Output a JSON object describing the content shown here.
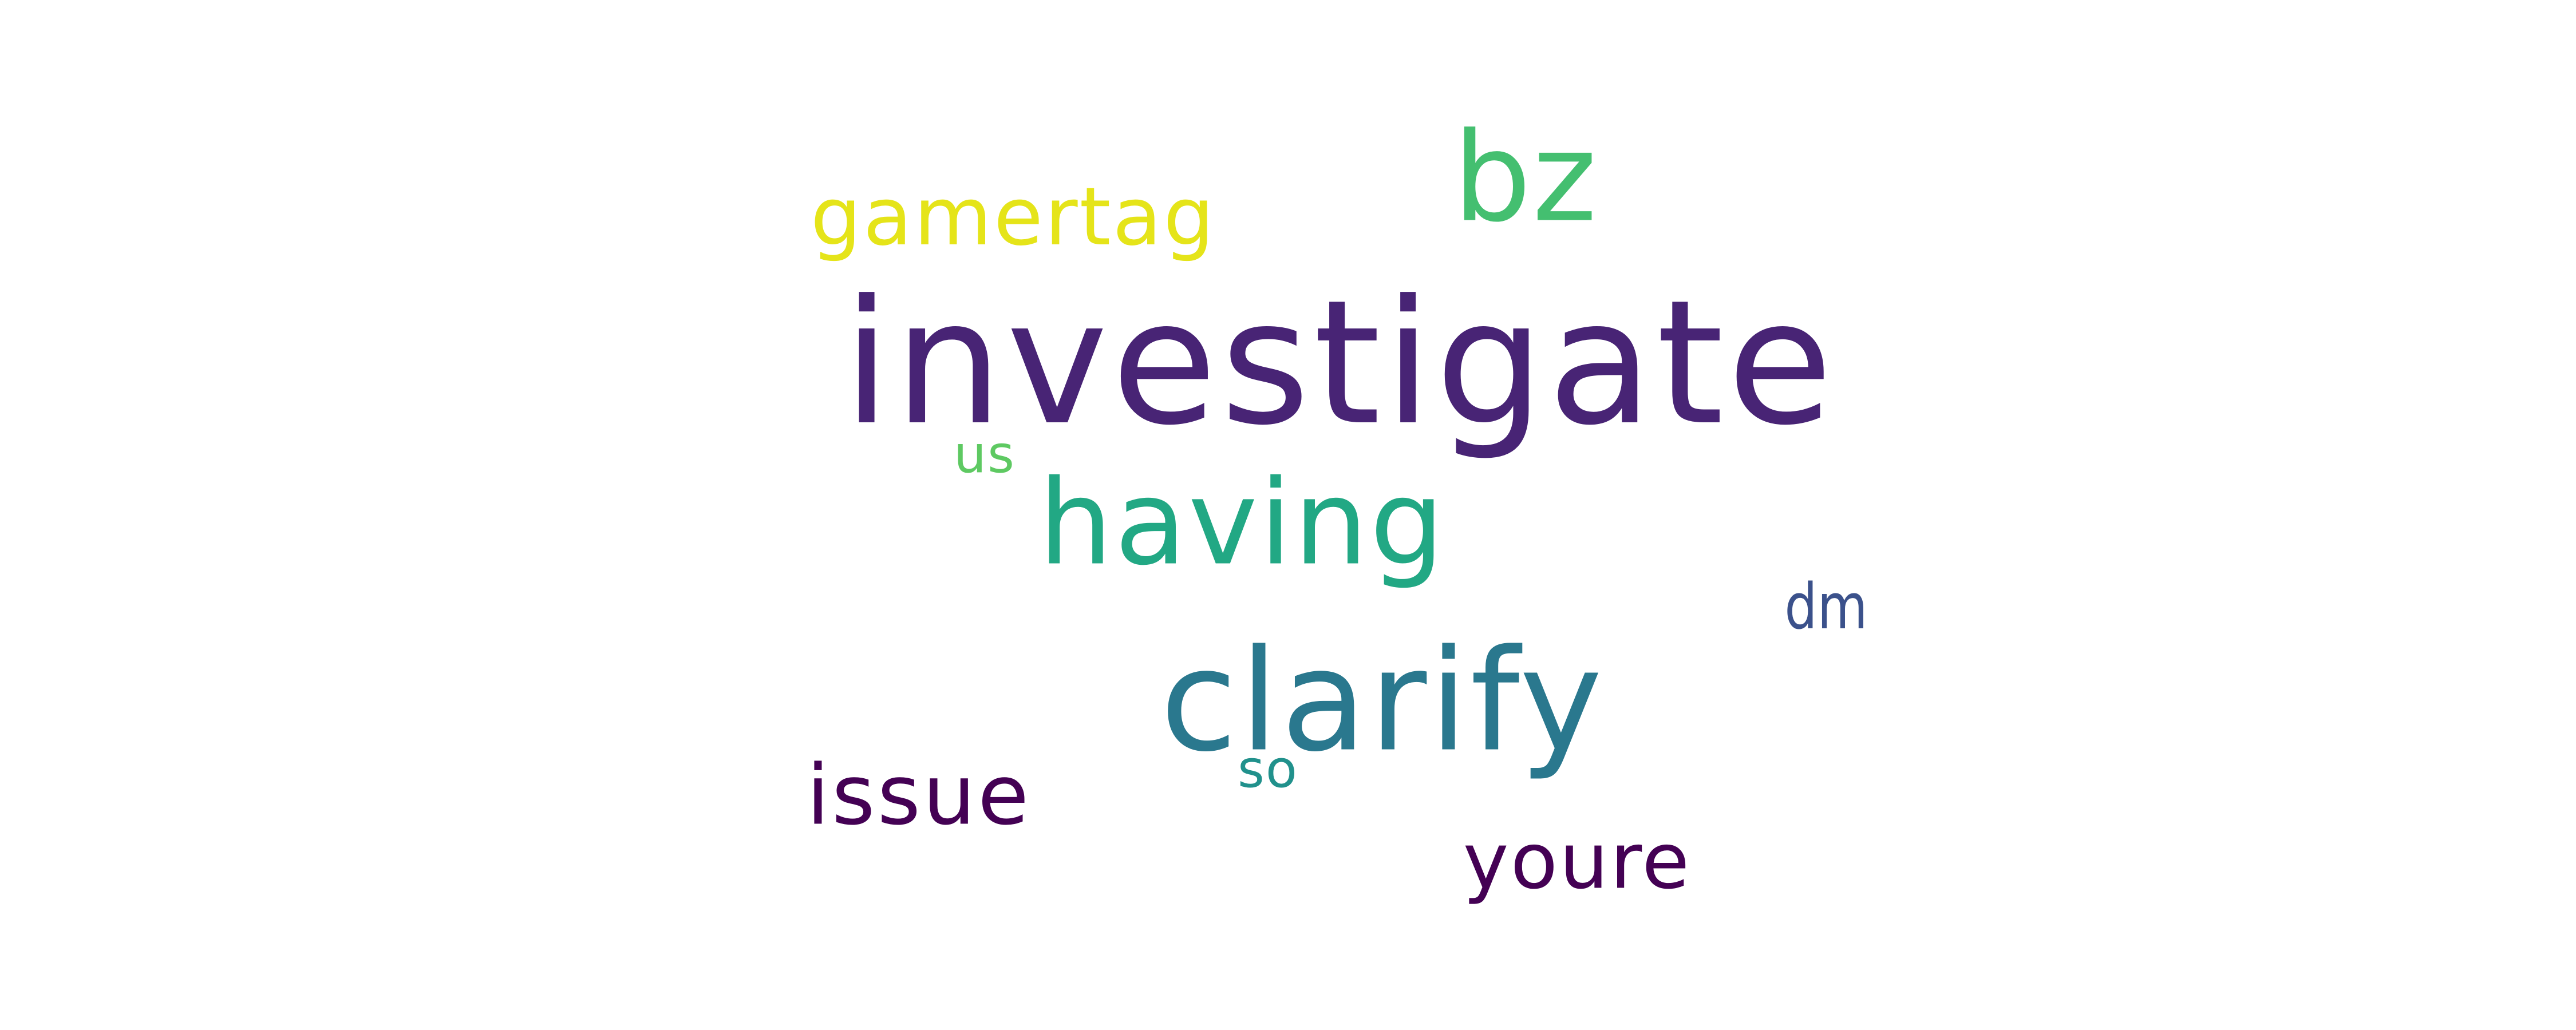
{
  "words": {
    "investigate": {
      "text": "investigate",
      "color": "#482475"
    },
    "clarify": {
      "text": "clarify",
      "color": "#2a788e"
    },
    "having": {
      "text": "having",
      "color": "#22a884"
    },
    "bz": {
      "text": "bz",
      "color": "#44bf70"
    },
    "gamertag": {
      "text": "gamertag",
      "color": "#e5e419"
    },
    "issue": {
      "text": "issue",
      "color": "#440154"
    },
    "youre": {
      "text": "youre",
      "color": "#440154"
    },
    "dm": {
      "text": "dm",
      "color": "#3b518b"
    },
    "us": {
      "text": "us",
      "color": "#5ec962"
    },
    "so": {
      "text": "so",
      "color": "#21918c"
    }
  }
}
